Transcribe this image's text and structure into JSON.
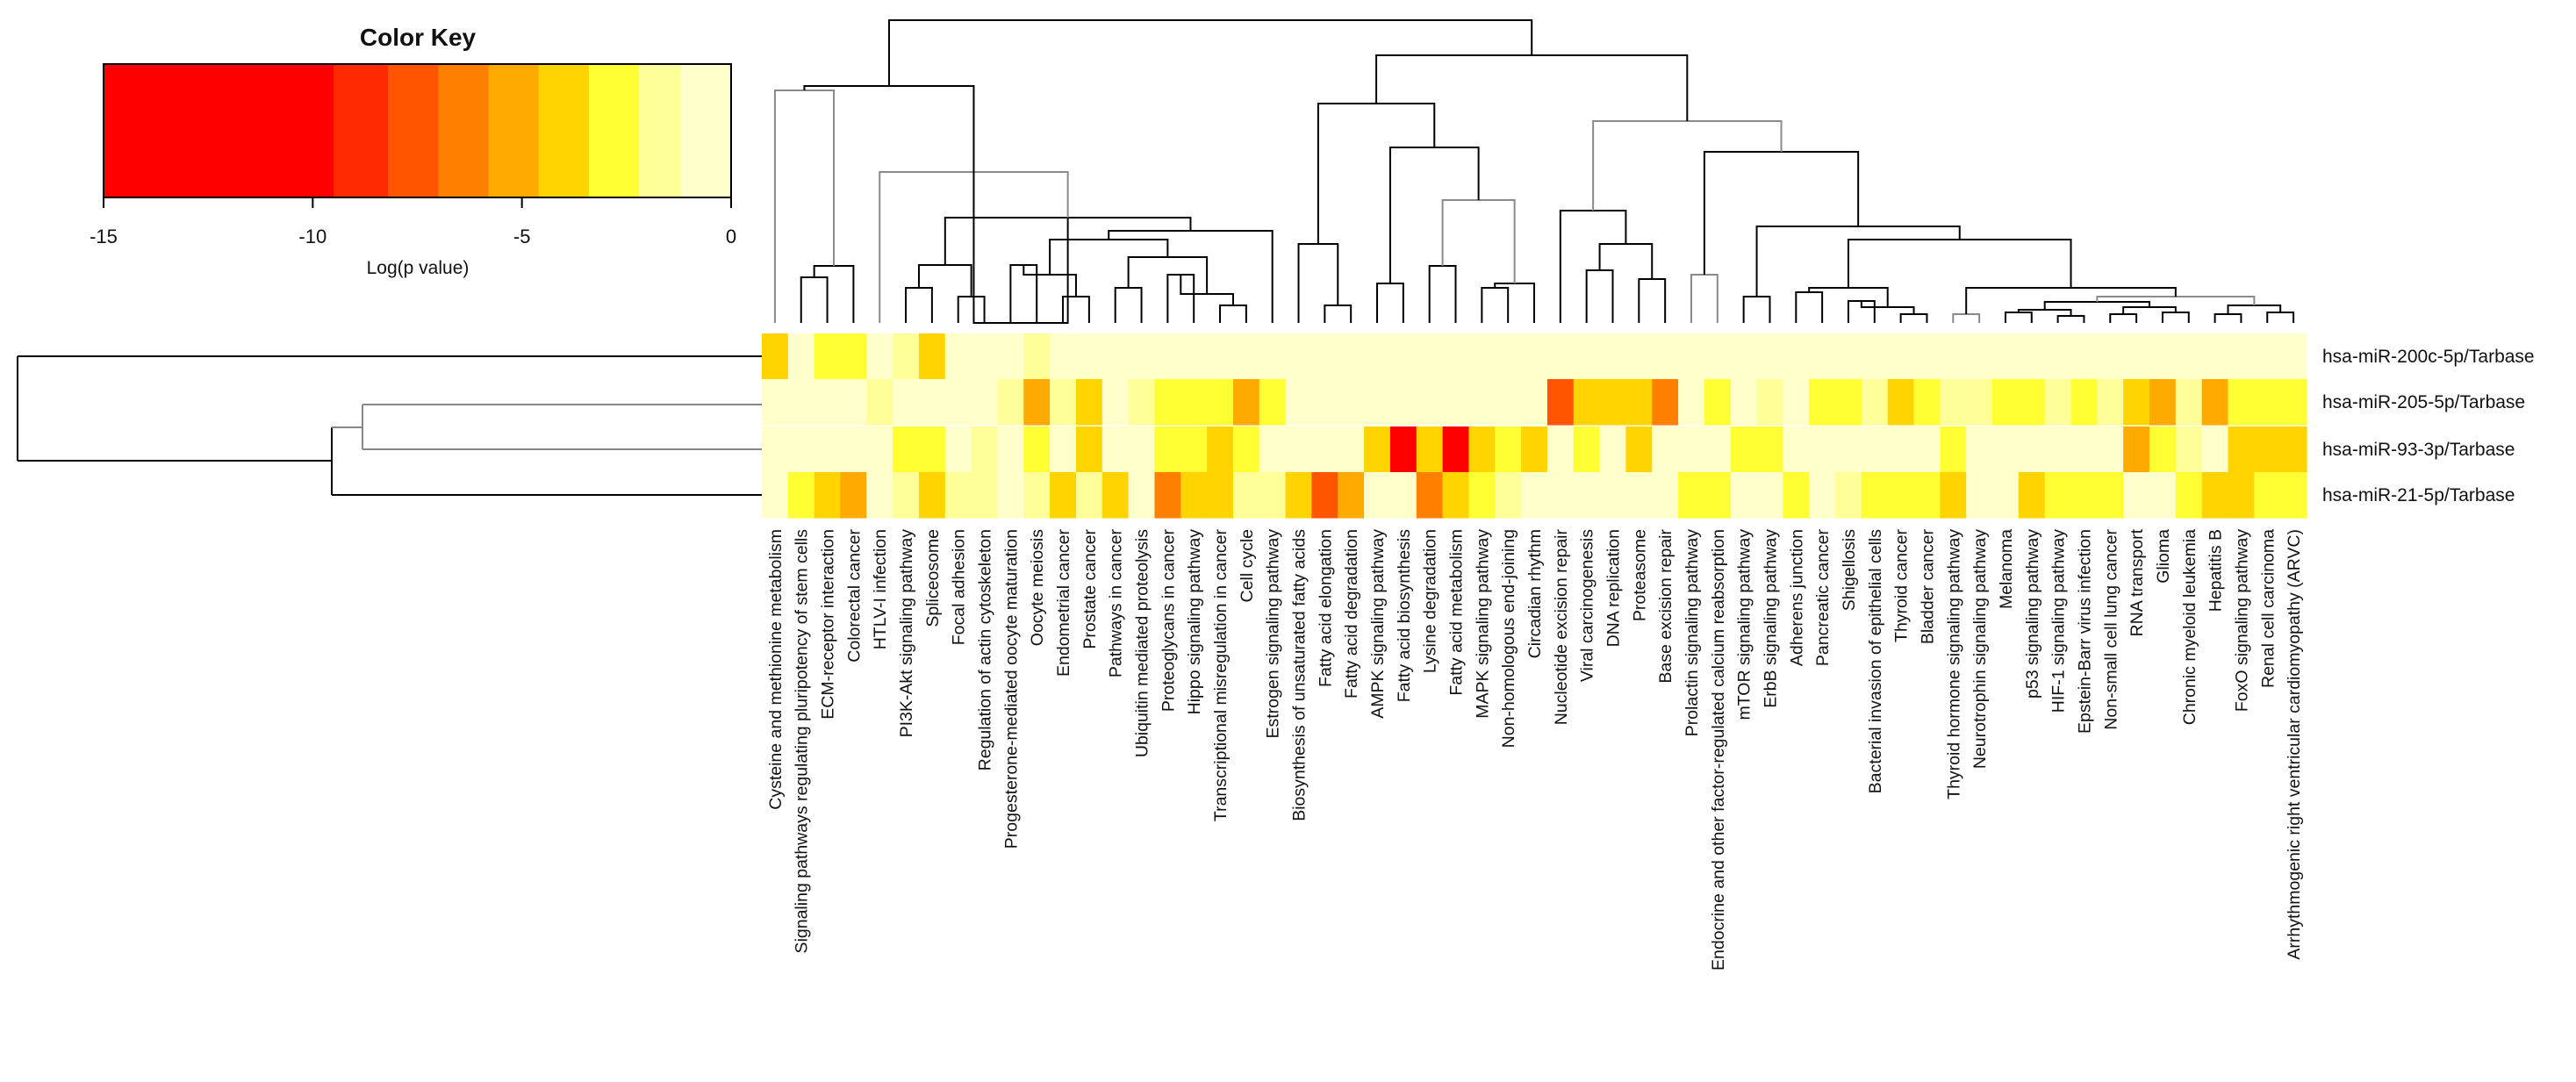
{
  "chart_data": {
    "type": "heatmap",
    "title": "",
    "color_key": {
      "title": "Color Key",
      "xlabel": "Log(p value)",
      "range": [
        -15,
        0
      ],
      "ticks": [
        "-15",
        "-10",
        "-5",
        "0"
      ],
      "breaks": [
        -15,
        -9.5,
        -8.2,
        -7.0,
        -5.8,
        -4.6,
        -3.4,
        -2.2,
        -1.2,
        0
      ],
      "colors": [
        "#FF0000",
        "#FF2A00",
        "#FF5500",
        "#FF8000",
        "#FFAA00",
        "#FFD400",
        "#FFFF33",
        "#FFFF99",
        "#FFFFCC"
      ]
    },
    "rows": [
      "hsa-miR-200c-5p/Tarbase",
      "hsa-miR-205-5p/Tarbase",
      "hsa-miR-93-3p/Tarbase",
      "hsa-miR-21-5p/Tarbase"
    ],
    "columns": [
      "Cysteine and methionine metabolism",
      "Signaling pathways regulating pluripotency of stem cells",
      "ECM-receptor interaction",
      "Colorectal cancer",
      "HTLV-I infection",
      "PI3K-Akt signaling pathway",
      "Spliceosome",
      "Focal adhesion",
      "Regulation of actin cytoskeleton",
      "Progesterone-mediated oocyte maturation",
      "Oocyte meiosis",
      "Endometrial cancer",
      "Prostate cancer",
      "Pathways in cancer",
      "Ubiquitin mediated proteolysis",
      "Proteoglycans in cancer",
      "Hippo signaling pathway",
      "Transcriptional misregulation in cancer",
      "Cell cycle",
      "Estrogen signaling pathway",
      "Biosynthesis of unsaturated fatty acids",
      "Fatty acid elongation",
      "Fatty acid degradation",
      "AMPK signaling pathway",
      "Fatty acid biosynthesis",
      "Lysine degradation",
      "Fatty acid metabolism",
      "MAPK signaling pathway",
      "Non-homologous end-joining",
      "Circadian rhythm",
      "Nucleotide excision repair",
      "Viral carcinogenesis",
      "DNA replication",
      "Proteasome",
      "Base excision repair",
      "Prolactin signaling pathway",
      "Endocrine and other factor-regulated calcium reabsorption",
      "mTOR signaling pathway",
      "ErbB signaling pathway",
      "Adherens junction",
      "Pancreatic cancer",
      "Shigellosis",
      "Bacterial invasion of epithelial cells",
      "Thyroid cancer",
      "Bladder cancer",
      "Thyroid hormone signaling pathway",
      "Neurotrophin signaling pathway",
      "Melanoma",
      "p53 signaling pathway",
      "HIF-1 signaling pathway",
      "Epstein-Barr virus infection",
      "Non-small cell lung cancer",
      "RNA transport",
      "Glioma",
      "Chronic myeloid leukemia",
      "Hepatitis B",
      "FoxO signaling pathway",
      "Renal cell carcinoma",
      "Arrhythmogenic right ventricular cardiomyopathy (ARVC)"
    ],
    "values": [
      [
        -4,
        -0.5,
        -3,
        -3,
        -0.5,
        -1.5,
        -4,
        -1,
        -0.5,
        -0.5,
        -2,
        -0.5,
        -0.5,
        -0.5,
        -0.5,
        -0.5,
        -0.5,
        -0.5,
        -0.5,
        -0.5,
        -0.5,
        -0.5,
        -0.5,
        -0.5,
        -0.5,
        -0.5,
        -0.5,
        -0.5,
        -0.5,
        -0.5,
        -0.5,
        -0.5,
        -0.5,
        -0.5,
        -0.5,
        -0.5,
        -0.5,
        -0.5,
        -0.5,
        -0.5,
        -0.5,
        -0.5,
        -0.5,
        -0.5,
        -0.5,
        -0.5,
        -0.5,
        -0.5,
        -0.5,
        -0.5,
        -0.5,
        -0.5,
        -0.5,
        -0.5,
        -0.5,
        -0.5,
        -0.5,
        -0.5,
        -0.5
      ],
      [
        -0.5,
        -0.5,
        -0.5,
        -0.5,
        -2,
        -0.5,
        -0.5,
        -0.5,
        -0.5,
        -1.5,
        -5,
        -1.5,
        -3.5,
        -0.5,
        -1.5,
        -2.5,
        -3,
        -3,
        -5,
        -2.5,
        -0.5,
        -0.5,
        -0.5,
        -0.5,
        -0.5,
        -0.5,
        -0.5,
        -0.5,
        -0.5,
        -0.5,
        -7,
        -3.5,
        -4,
        -4,
        -6,
        -0.5,
        -2.5,
        -0.5,
        -1.5,
        -0.5,
        -2.5,
        -2.5,
        -1.5,
        -4,
        -2.5,
        -1.5,
        -1.5,
        -2.5,
        -2.5,
        -1.5,
        -3,
        -1.5,
        -4,
        -5,
        -2,
        -5.5,
        -2.5,
        -2.5,
        -2.5
      ],
      [
        -0.5,
        -0.5,
        -0.5,
        -0.5,
        -0.5,
        -2.5,
        -2.5,
        -0.5,
        -1.5,
        -0.5,
        -3,
        -0.5,
        -3.5,
        -0.5,
        -0.5,
        -2.5,
        -2.5,
        -4,
        -2.5,
        -0.5,
        -0.5,
        -0.5,
        -0.5,
        -4,
        -13.5,
        -4,
        -13.5,
        -3.5,
        -2.5,
        -3.5,
        -0.5,
        -2.5,
        -0.5,
        -3.5,
        -0.5,
        -0.5,
        -0.5,
        -2.5,
        -2.5,
        -0.5,
        -0.5,
        -0.5,
        -0.5,
        -0.5,
        -0.5,
        -2.5,
        -0.5,
        -0.5,
        -0.5,
        -0.5,
        -0.5,
        -0.5,
        -5,
        -3,
        -1.5,
        -0.5,
        -4,
        -4,
        -4
      ],
      [
        -0.5,
        -2.5,
        -3.5,
        -5,
        -0.5,
        -1.5,
        -3.5,
        -2,
        -2,
        -0.5,
        -1.5,
        -3.5,
        -1.5,
        -4.5,
        -0.5,
        -6,
        -3.5,
        -3.5,
        -2,
        -1.5,
        -4.5,
        -7.5,
        -5,
        -0.5,
        -0.5,
        -6.5,
        -4.5,
        -2.5,
        -2,
        -0.5,
        -0.5,
        -0.5,
        -0.5,
        -0.5,
        -0.5,
        -3,
        -3,
        -0.5,
        -0.5,
        -3,
        -0.5,
        -1.5,
        -2.5,
        -2.5,
        -2.5,
        -4,
        -0.5,
        -0.5,
        -4,
        -2.5,
        -2.5,
        -2.5,
        -0.5,
        -0.5,
        -2.5,
        -3.5,
        -3.5,
        -2.5,
        -2.5
      ]
    ]
  }
}
